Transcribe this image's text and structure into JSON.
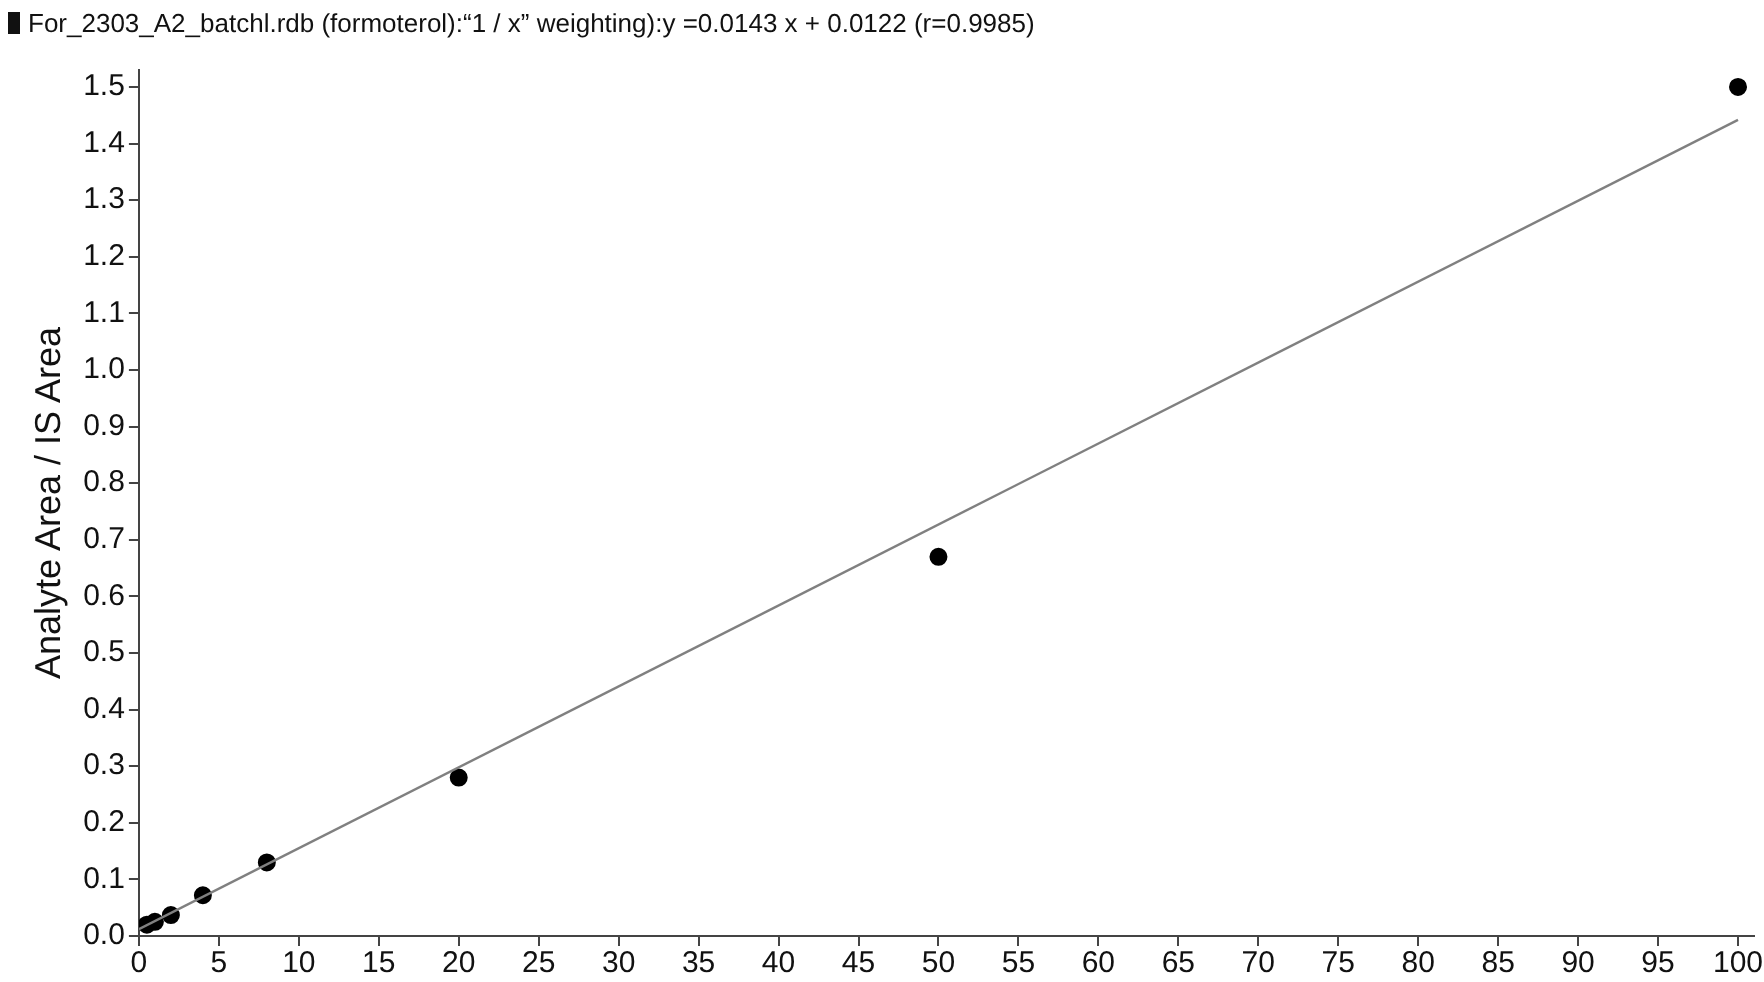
{
  "chart_data": {
    "type": "scatter",
    "title": "For_2303_A2_batchl.rdb (formoterol):“1 / x” weighting):y =0.0143 x + 0.0122 (r=0.9985)",
    "ylabel": "Analyte Area / IS Area",
    "series": [
      {
        "color": "#000000",
        "x": [
          0.5,
          1,
          2,
          4,
          8,
          20,
          50,
          100
        ],
        "values": [
          0.02,
          0.025,
          0.037,
          0.072,
          0.13,
          0.28,
          0.67,
          1.5
        ]
      },
      {
        "type": "line",
        "marker": "none",
        "color": "#808080",
        "x": [
          0,
          100
        ],
        "values": [
          0.012,
          1.442
        ]
      }
    ],
    "xlim": [
      0,
      101
    ],
    "xticks": [
      0,
      5,
      10,
      15,
      20,
      25,
      30,
      35,
      40,
      45,
      50,
      55,
      60,
      65,
      70,
      75,
      80,
      85,
      90,
      95,
      100
    ],
    "ylim": [
      0,
      1.53
    ],
    "yticks": [
      {
        "value": 0,
        "label": "0.0"
      },
      {
        "value": 0.1,
        "label": "0.1"
      },
      {
        "value": 0.2,
        "label": "0.2"
      },
      {
        "value": 0.3,
        "label": "0.3"
      },
      {
        "value": 0.4,
        "label": "0.4"
      },
      {
        "value": 0.5,
        "label": "0.5"
      },
      {
        "value": 0.6,
        "label": "0.6"
      },
      {
        "value": 0.7,
        "label": "0.7"
      },
      {
        "value": 0.8,
        "label": "0.8"
      },
      {
        "value": 0.9,
        "label": "0.9"
      },
      {
        "value": 1,
        "label": "1.0"
      },
      {
        "value": 1.1,
        "label": "1.1"
      },
      {
        "value": 1.2,
        "label": "1.2"
      },
      {
        "value": 1.3,
        "label": "1.3"
      },
      {
        "value": 1.4,
        "label": "1.4"
      },
      {
        "value": 1.5,
        "label": "1.5"
      }
    ],
    "grid": false,
    "legend": false,
    "marker": "circle",
    "line_style": "solid"
  }
}
